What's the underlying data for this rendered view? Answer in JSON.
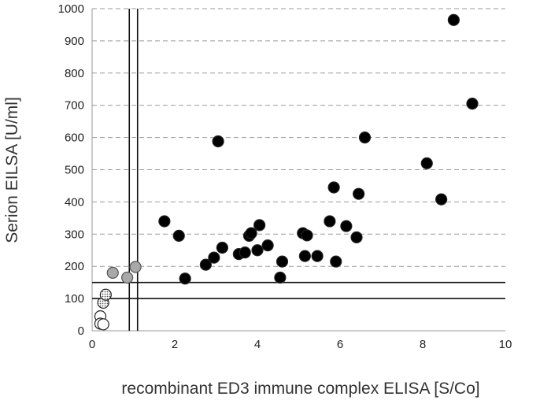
{
  "chart_data": {
    "type": "scatter",
    "xlabel": "recombinant ED3 immune complex ELISA [S/Co]",
    "ylabel": "Serion EILSA [U/ml]",
    "xlim": [
      0,
      10
    ],
    "ylim": [
      0,
      1000
    ],
    "x_ticks": [
      "0",
      "2",
      "4",
      "6",
      "8",
      "10"
    ],
    "y_ticks": [
      "0",
      "100",
      "200",
      "300",
      "400",
      "500",
      "600",
      "700",
      "800",
      "900",
      "1000"
    ],
    "grid": "horizontal-dashed",
    "legend": "none",
    "cutoff_lines": {
      "vertical_x": [
        0.9,
        1.1
      ],
      "horizontal_y": [
        100,
        150
      ]
    },
    "series": [
      {
        "style": "open",
        "color": "#ffffff",
        "points": [
          {
            "x": 0.2,
            "y": 45
          },
          {
            "x": 0.2,
            "y": 22
          },
          {
            "x": 0.27,
            "y": 20
          }
        ]
      },
      {
        "style": "dotted",
        "color": "#d0d0d0",
        "points": [
          {
            "x": 0.27,
            "y": 87
          },
          {
            "x": 0.33,
            "y": 112
          }
        ]
      },
      {
        "style": "grey",
        "color": "#a8a8a8",
        "points": [
          {
            "x": 0.5,
            "y": 180
          },
          {
            "x": 0.85,
            "y": 165
          },
          {
            "x": 1.05,
            "y": 198
          }
        ]
      },
      {
        "style": "filled",
        "color": "#000000",
        "points": [
          {
            "x": 1.75,
            "y": 340
          },
          {
            "x": 2.1,
            "y": 295
          },
          {
            "x": 2.25,
            "y": 162
          },
          {
            "x": 2.75,
            "y": 205
          },
          {
            "x": 2.95,
            "y": 227
          },
          {
            "x": 3.05,
            "y": 588
          },
          {
            "x": 3.15,
            "y": 258
          },
          {
            "x": 3.55,
            "y": 238
          },
          {
            "x": 3.7,
            "y": 243
          },
          {
            "x": 3.8,
            "y": 295
          },
          {
            "x": 3.85,
            "y": 303
          },
          {
            "x": 4.0,
            "y": 250
          },
          {
            "x": 4.05,
            "y": 328
          },
          {
            "x": 4.25,
            "y": 265
          },
          {
            "x": 4.55,
            "y": 165
          },
          {
            "x": 4.6,
            "y": 215
          },
          {
            "x": 5.1,
            "y": 303
          },
          {
            "x": 5.15,
            "y": 232
          },
          {
            "x": 5.2,
            "y": 296
          },
          {
            "x": 5.45,
            "y": 232
          },
          {
            "x": 5.75,
            "y": 340
          },
          {
            "x": 5.85,
            "y": 445
          },
          {
            "x": 5.9,
            "y": 215
          },
          {
            "x": 6.15,
            "y": 325
          },
          {
            "x": 6.4,
            "y": 290
          },
          {
            "x": 6.45,
            "y": 425
          },
          {
            "x": 6.6,
            "y": 600
          },
          {
            "x": 8.1,
            "y": 520
          },
          {
            "x": 8.45,
            "y": 408
          },
          {
            "x": 8.75,
            "y": 965
          },
          {
            "x": 9.2,
            "y": 705
          }
        ]
      }
    ]
  }
}
